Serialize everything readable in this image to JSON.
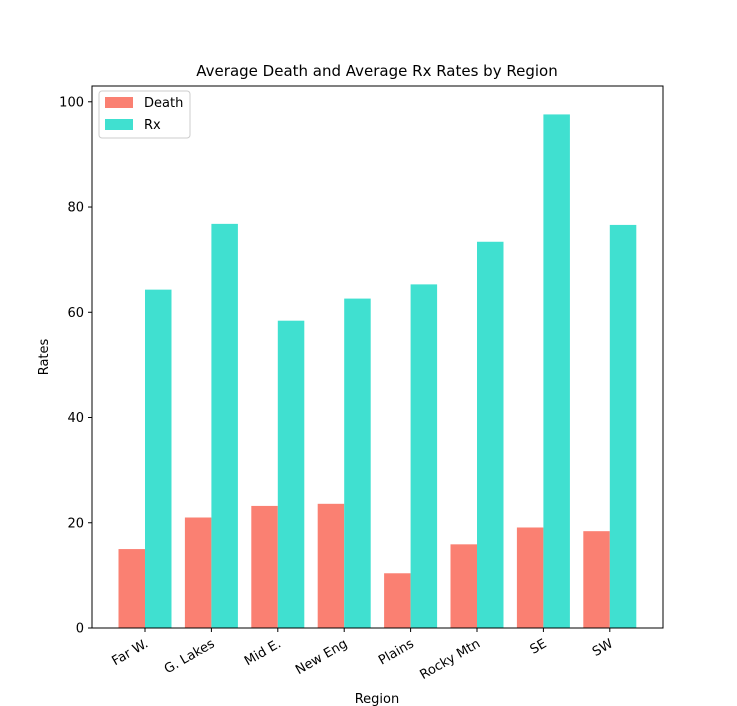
{
  "chart_data": {
    "type": "bar",
    "title": "Average Death and Average Rx Rates by Region",
    "xlabel": "Region",
    "ylabel": "Rates",
    "ylim": [
      0,
      103
    ],
    "yticks": [
      0,
      20,
      40,
      60,
      80,
      100
    ],
    "categories": [
      "Far W.",
      "G. Lakes",
      "Mid E.",
      "New Eng",
      "Plains",
      "Rocky Mtn",
      "SE",
      "SW"
    ],
    "series": [
      {
        "name": "Death",
        "color": "#fa8072",
        "values": [
          15.0,
          21.0,
          23.2,
          23.6,
          10.4,
          15.9,
          19.1,
          18.4
        ]
      },
      {
        "name": "Rx",
        "color": "#40e0d0",
        "values": [
          64.3,
          76.8,
          58.4,
          62.6,
          65.3,
          73.4,
          97.6,
          76.6
        ]
      }
    ],
    "legend_position": "top-left",
    "grid": false
  }
}
